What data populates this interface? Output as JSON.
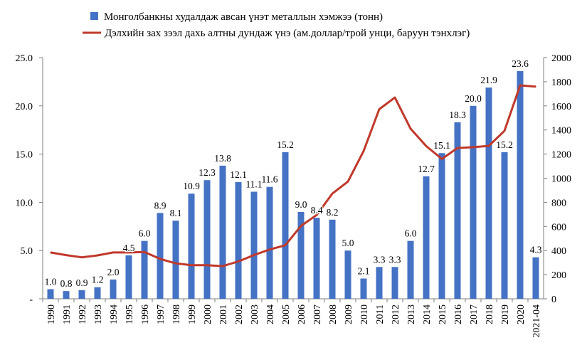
{
  "chart_data": {
    "type": "bar+line",
    "categories": [
      "1990",
      "1991",
      "1992",
      "1993",
      "1994",
      "1995",
      "1996",
      "1997",
      "1998",
      "1999",
      "2000",
      "2001",
      "2002",
      "2003",
      "2004",
      "2005",
      "2006",
      "2007",
      "2008",
      "2009",
      "2010",
      "2011",
      "2012",
      "2013",
      "2014",
      "2015",
      "2016",
      "2017",
      "2018",
      "2019",
      "2020",
      "2021-04"
    ],
    "series": [
      {
        "name": "Монголбанкны худалдаж авсан үнэт металлын хэмжээ (тонн)",
        "type": "bar",
        "axis": "left",
        "color": "#4472C4",
        "values": [
          1.0,
          0.8,
          0.9,
          1.2,
          2.0,
          4.5,
          6.0,
          8.9,
          8.1,
          10.9,
          12.3,
          13.8,
          12.1,
          11.1,
          11.6,
          15.2,
          9.0,
          8.4,
          8.2,
          5.0,
          2.1,
          3.3,
          3.3,
          6.0,
          12.7,
          15.1,
          18.3,
          20.0,
          21.9,
          15.2,
          23.6,
          4.3
        ],
        "labels": [
          "1.0",
          "0.8",
          "0.9",
          "1.2",
          "2.0",
          "4.5",
          "6.0",
          "8.9",
          "8.1",
          "10.9",
          "12.3",
          "13.8",
          "12.1",
          "11.1",
          "11.6",
          "15.2",
          "9.0",
          "8.4",
          "8.2",
          "5.0",
          "2.1",
          "3.3",
          "3.3",
          "6.0",
          "12.7",
          "15.1",
          "18.3",
          "20.0",
          "21.9",
          "15.2",
          "23.6",
          "4.3"
        ]
      },
      {
        "name": "Дэлхийн зах зээл дахь алтны дундаж үнэ (ам.доллар/трой унци, баруун тэнхлэг)",
        "type": "line",
        "axis": "right",
        "color": "#C0392B",
        "values": [
          384,
          362,
          344,
          360,
          384,
          384,
          388,
          331,
          294,
          279,
          279,
          271,
          310,
          363,
          409,
          444,
          604,
          695,
          872,
          972,
          1225,
          1572,
          1669,
          1411,
          1266,
          1160,
          1251,
          1257,
          1268,
          1393,
          1770,
          1760
        ]
      }
    ],
    "y_left": {
      "min": 0,
      "max": 25,
      "ticks": [
        "-",
        "5.0",
        "10.0",
        "15.0",
        "20.0",
        "25.0"
      ]
    },
    "y_right": {
      "min": 0,
      "max": 2000,
      "ticks": [
        "0",
        "200",
        "400",
        "600",
        "800",
        "1000",
        "1200",
        "1400",
        "1600",
        "1800",
        "2000"
      ]
    },
    "grid": false,
    "legend_position": "top"
  }
}
